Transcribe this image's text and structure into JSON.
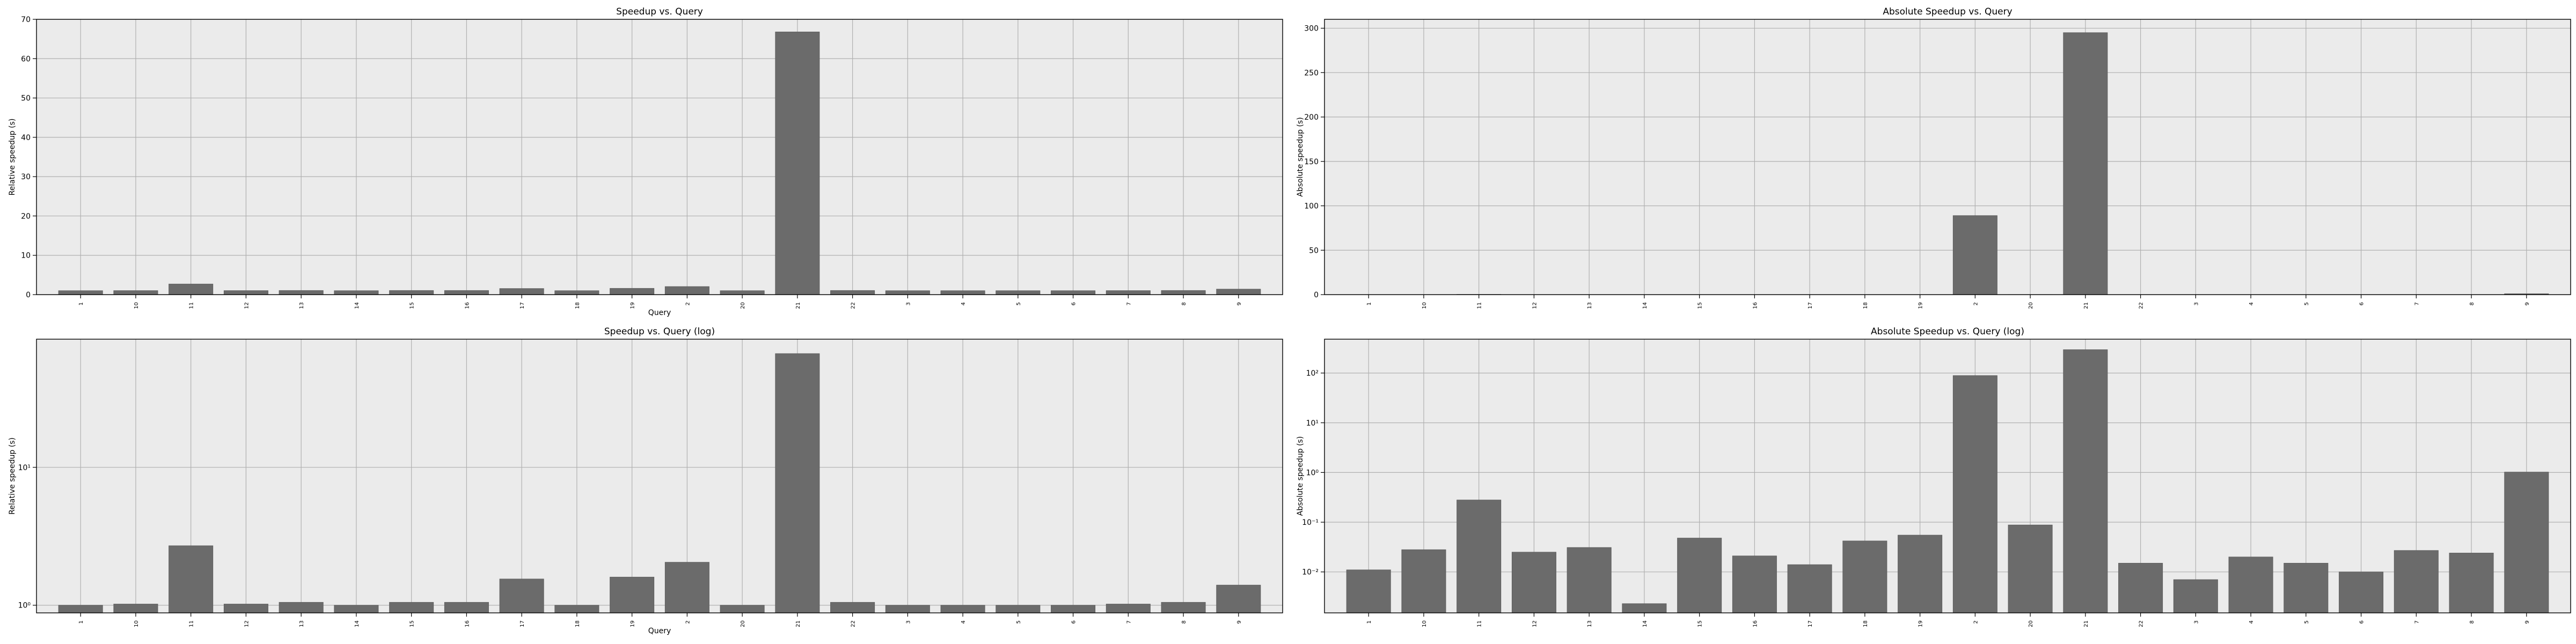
{
  "chart_data": [
    {
      "type": "bar",
      "title": "Speedup vs. Query",
      "xlabel": "Query",
      "ylabel": "Relative speedup (s)",
      "ylim": [
        0,
        70
      ],
      "yticks": [
        0,
        10,
        20,
        30,
        40,
        50,
        60,
        70
      ],
      "log_scale": false,
      "grid": true,
      "bar_color": "#6b6b6b",
      "background": "#ebebeb",
      "categories": [
        "1",
        "10",
        "11",
        "12",
        "13",
        "14",
        "15",
        "16",
        "17",
        "18",
        "19",
        "2",
        "20",
        "21",
        "22",
        "3",
        "4",
        "5",
        "6",
        "7",
        "8",
        "9"
      ],
      "values": [
        1.0,
        1.02,
        2.7,
        1.02,
        1.05,
        1.0,
        1.05,
        1.05,
        1.55,
        1.0,
        1.6,
        2.05,
        1.0,
        66.8,
        1.05,
        1.0,
        1.0,
        1.0,
        1.0,
        1.02,
        1.05,
        1.4
      ]
    },
    {
      "type": "bar",
      "title": "Absolute Speedup vs. Query",
      "xlabel": "",
      "ylabel": "Absolute speedup (s)",
      "ylim": [
        0,
        310
      ],
      "yticks": [
        0,
        50,
        100,
        150,
        200,
        250,
        300
      ],
      "log_scale": false,
      "grid": true,
      "bar_color": "#6b6b6b",
      "background": "#ebebeb",
      "categories": [
        "1",
        "10",
        "11",
        "12",
        "13",
        "14",
        "15",
        "16",
        "17",
        "18",
        "19",
        "2",
        "20",
        "21",
        "22",
        "3",
        "4",
        "5",
        "6",
        "7",
        "8",
        "9"
      ],
      "values": [
        0.011,
        0.028,
        0.28,
        0.025,
        0.031,
        0.0023,
        0.048,
        0.021,
        0.014,
        0.042,
        0.055,
        89.0,
        0.088,
        295.0,
        0.015,
        0.007,
        0.02,
        0.015,
        0.01,
        0.027,
        0.024,
        1.02
      ]
    },
    {
      "type": "bar",
      "title": "Speedup vs. Query (log)",
      "xlabel": "Query",
      "ylabel": "Relative speedup (s)",
      "ylim": [
        0.88,
        85
      ],
      "yticks": [
        1,
        10
      ],
      "ytick_labels": [
        "10⁰",
        "10¹"
      ],
      "log_scale": true,
      "grid": true,
      "bar_color": "#6b6b6b",
      "background": "#ebebeb",
      "categories": [
        "1",
        "10",
        "11",
        "12",
        "13",
        "14",
        "15",
        "16",
        "17",
        "18",
        "19",
        "2",
        "20",
        "21",
        "22",
        "3",
        "4",
        "5",
        "6",
        "7",
        "8",
        "9"
      ],
      "values": [
        1.0,
        1.02,
        2.7,
        1.02,
        1.05,
        1.0,
        1.05,
        1.05,
        1.55,
        1.0,
        1.6,
        2.05,
        1.0,
        66.8,
        1.05,
        1.0,
        1.0,
        1.0,
        1.0,
        1.02,
        1.05,
        1.4
      ]
    },
    {
      "type": "bar",
      "title": "Absolute Speedup vs. Query (log)",
      "xlabel": "",
      "ylabel": "Absolute speedup (s)",
      "ylim": [
        0.0015,
        480
      ],
      "yticks": [
        0.01,
        0.1,
        1,
        10,
        100
      ],
      "ytick_labels": [
        "10⁻²",
        "10⁻¹",
        "10⁰",
        "10¹",
        "10²"
      ],
      "log_scale": true,
      "grid": true,
      "bar_color": "#6b6b6b",
      "background": "#ebebeb",
      "categories": [
        "1",
        "10",
        "11",
        "12",
        "13",
        "14",
        "15",
        "16",
        "17",
        "18",
        "19",
        "2",
        "20",
        "21",
        "22",
        "3",
        "4",
        "5",
        "6",
        "7",
        "8",
        "9"
      ],
      "values": [
        0.011,
        0.028,
        0.28,
        0.025,
        0.031,
        0.0023,
        0.048,
        0.021,
        0.014,
        0.042,
        0.055,
        89.0,
        0.088,
        295.0,
        0.015,
        0.007,
        0.02,
        0.015,
        0.01,
        0.027,
        0.024,
        1.02
      ]
    }
  ]
}
